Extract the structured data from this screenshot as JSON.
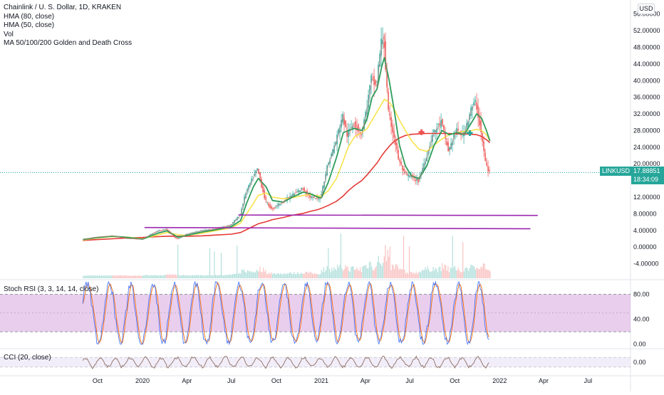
{
  "legend": {
    "title": "Chainlink / U. S. Dollar, 1D, KRAKEN",
    "hma80": "HMA (80, close)",
    "hma50": "HMA (50, close)",
    "vol": "Vol",
    "ma_cross": "MA 50/100/200 Golden and Death Cross"
  },
  "currency": "USD",
  "symbol": "LINKUSD",
  "last_price": "17.88851",
  "countdown": "18:34:09",
  "panes": {
    "stoch_title": "Stoch RSI (3, 3, 14, 14, close)",
    "cci_title": "CCI (20, close)"
  },
  "colors": {
    "up": "#26a69a",
    "down": "#ef5350",
    "hma80": "#f7e34d",
    "hma50": "#2e9c5a",
    "ma200": "#e53935",
    "level_line": "#9c27b0",
    "stoch_band": "#e1bee7",
    "k_line": "#2962ff",
    "d_line": "#ff6d00",
    "cci_line": "#8d6e63"
  },
  "chart_data": [
    {
      "type": "line",
      "pane": "price",
      "y_axis_ticks": [
        "56.00000",
        "52.00000",
        "48.00000",
        "44.00000",
        "40.00000",
        "36.00000",
        "32.00000",
        "28.00000",
        "24.00000",
        "20.00000",
        "16.00000",
        "12.00000",
        "8.00000",
        "4.00000",
        "0.00000",
        "-4.00000"
      ],
      "ylim": [
        -7.5,
        58
      ],
      "x_axis_ticks": [
        "Oct",
        "2020",
        "Apr",
        "Jul",
        "Oct",
        "2021",
        "Apr",
        "Jul",
        "Oct",
        "2022",
        "Apr",
        "Jul"
      ],
      "series": [
        {
          "key": "close",
          "x": [
            "2019-09-01",
            "2019-10-01",
            "2019-11-01",
            "2019-12-01",
            "2020-01-01",
            "2020-02-01",
            "2020-02-20",
            "2020-03-13",
            "2020-04-01",
            "2020-05-01",
            "2020-06-01",
            "2020-07-01",
            "2020-07-20",
            "2020-08-01",
            "2020-08-15",
            "2020-08-25",
            "2020-09-10",
            "2020-09-23",
            "2020-10-15",
            "2020-11-01",
            "2020-11-25",
            "2020-12-10",
            "2020-12-25",
            "2021-01-01",
            "2021-01-15",
            "2021-02-01",
            "2021-02-15",
            "2021-02-25",
            "2021-03-10",
            "2021-03-25",
            "2021-04-05",
            "2021-04-15",
            "2021-04-25",
            "2021-05-05",
            "2021-05-10",
            "2021-05-20",
            "2021-05-30",
            "2021-06-10",
            "2021-06-22",
            "2021-07-05",
            "2021-07-20",
            "2021-08-05",
            "2021-08-20",
            "2021-09-05",
            "2021-09-20",
            "2021-10-05",
            "2021-10-20",
            "2021-11-05",
            "2021-11-15",
            "2021-11-25",
            "2021-12-05",
            "2021-12-12"
          ],
          "values": [
            1.8,
            2.4,
            2.7,
            2.1,
            1.9,
            3.8,
            4.3,
            1.9,
            3.1,
            3.9,
            4.4,
            5.3,
            7.6,
            13.0,
            16.5,
            18.8,
            11.2,
            9.1,
            10.9,
            12.2,
            14.1,
            12.1,
            11.6,
            11.9,
            19.5,
            25.2,
            31.7,
            26.7,
            30.0,
            27.0,
            33.0,
            40.5,
            38.5,
            49.0,
            51.0,
            32.0,
            27.5,
            21.0,
            17.5,
            17.0,
            15.8,
            21.5,
            27.5,
            30.0,
            23.0,
            28.0,
            27.0,
            33.0,
            35.0,
            28.0,
            20.0,
            17.9
          ]
        },
        {
          "key": "hma80",
          "values": [
            1.7,
            2.2,
            2.5,
            2.4,
            2.0,
            2.9,
            3.5,
            3.0,
            2.8,
            3.3,
            4.0,
            4.6,
            5.8,
            8.0,
            10.5,
            12.4,
            13.0,
            12.0,
            11.6,
            11.8,
            12.4,
            12.6,
            12.3,
            12.2,
            13.5,
            16.5,
            20.8,
            24.0,
            26.5,
            27.5,
            28.5,
            30.5,
            32.5,
            34.5,
            35.5,
            34.8,
            33.2,
            30.5,
            28.0,
            25.5,
            23.5,
            23.0,
            24.5,
            26.0,
            27.0,
            27.5,
            27.8,
            28.0,
            28.3,
            28.0,
            27.0,
            25.5
          ]
        },
        {
          "key": "hma50",
          "values": [
            1.8,
            2.3,
            2.6,
            2.3,
            1.9,
            3.3,
            3.9,
            2.4,
            2.8,
            3.6,
            4.2,
            4.9,
            6.4,
            10.5,
            14.5,
            16.5,
            14.5,
            11.2,
            10.8,
            11.9,
            13.2,
            12.8,
            12.0,
            11.8,
            15.5,
            21.5,
            27.5,
            28.0,
            28.5,
            28.0,
            31.0,
            36.0,
            38.0,
            43.5,
            45.5,
            40.0,
            33.0,
            24.5,
            19.5,
            17.0,
            16.5,
            19.5,
            24.5,
            28.0,
            27.0,
            27.5,
            27.0,
            30.0,
            32.0,
            31.0,
            28.0,
            25.5
          ]
        },
        {
          "key": "ma200",
          "values": [
            1.6,
            1.8,
            2.0,
            2.2,
            2.3,
            2.5,
            2.6,
            2.6,
            2.6,
            2.7,
            2.9,
            3.1,
            3.5,
            4.2,
            5.0,
            5.6,
            6.1,
            6.6,
            7.1,
            7.6,
            8.1,
            8.6,
            9.0,
            9.3,
            10.0,
            11.0,
            12.3,
            13.5,
            14.8,
            16.0,
            17.4,
            18.8,
            20.2,
            22.0,
            22.8,
            24.2,
            25.4,
            26.2,
            26.8,
            27.1,
            27.2,
            27.3,
            27.3,
            27.3,
            27.3,
            27.2,
            27.2,
            27.1,
            27.0,
            26.6,
            25.8,
            25.1
          ]
        },
        {
          "key": "horizontal_line_upper",
          "x": [
            "2020-07-15",
            "2022-03-20"
          ],
          "values": [
            7.7,
            7.6
          ]
        },
        {
          "key": "horizontal_line_lower",
          "x": [
            "2020-01-05",
            "2022-03-05"
          ],
          "values": [
            4.7,
            4.4
          ]
        }
      ],
      "markers": [
        {
          "x": "2021-07-25",
          "y": 27.6,
          "kind": "cross",
          "color": "#ef5350"
        },
        {
          "x": "2021-11-01",
          "y": 27.4,
          "kind": "cross",
          "color": "#26a69a"
        }
      ]
    },
    {
      "type": "line",
      "pane": "stoch_rsi",
      "y_axis_ticks": [
        "80.00",
        "40.00",
        "0.00"
      ],
      "ylim": [
        -5,
        100
      ],
      "band": [
        20,
        80
      ]
    },
    {
      "type": "line",
      "pane": "cci",
      "y_axis_ticks": [
        "0.00"
      ],
      "ylim": [
        -250,
        250
      ],
      "band": [
        -100,
        100
      ]
    }
  ]
}
